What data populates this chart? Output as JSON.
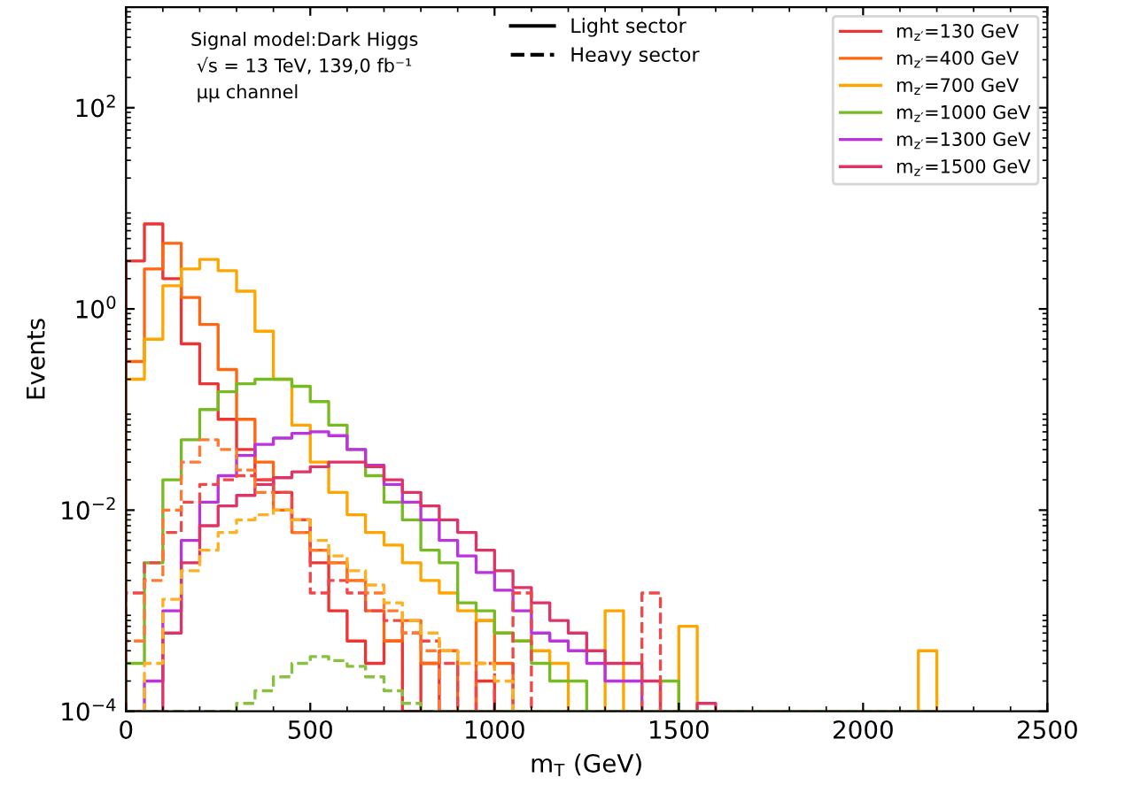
{
  "chart_data": {
    "type": "histogram",
    "xlabel": "m$_{T}$ (GeV)",
    "ylabel": "Events",
    "annotations": [
      "Signal model:Dark Higgs\n √s = 13 TeV, 139,0 fb⁻¹\n μμ channel",
      "Light sector",
      "Heavy sector"
    ],
    "bins": [
      0,
      50,
      100,
      150,
      200,
      250,
      300,
      350,
      400,
      450,
      500,
      550,
      600,
      650,
      700,
      750,
      800,
      850,
      900,
      950,
      1000,
      1050,
      1100,
      1150,
      1200,
      1250,
      1300,
      1350,
      1400,
      1450,
      1500,
      1550,
      1600,
      1650,
      1700,
      1750,
      1800,
      1850,
      1900,
      1950,
      2000,
      2050,
      2100,
      2150,
      2200
    ],
    "xlim": [
      0,
      2500
    ],
    "xticks": [
      0,
      500,
      1000,
      1500,
      2000,
      2500
    ],
    "log": "y",
    "ylim": [
      0.0001,
      1000
    ],
    "yticks": [
      {
        "value": 0.0001,
        "label": "10$^{−4}$"
      },
      {
        "value": 0.01,
        "label": "10$^{−2}$"
      },
      {
        "value": 1,
        "label": "10$^{0}$"
      },
      {
        "value": 100,
        "label": "10$^{2}$"
      }
    ],
    "legend": "top right",
    "grid": false,
    "series": [
      {
        "name": "m$_{z′}$=130 GeV",
        "color": "#ee3333",
        "line_style": "solid",
        "values": [
          3,
          7,
          2,
          0.45,
          0.18,
          0.08,
          0.04,
          0.02,
          0.015,
          0.008,
          0.003,
          0.001,
          0.0005,
          0.0003,
          0.0005,
          null,
          0.0003,
          null,
          null,
          0.0002,
          null,
          null,
          null,
          null,
          null,
          null,
          null,
          null,
          null,
          null,
          null,
          null,
          null,
          null,
          null,
          null,
          null,
          null,
          null,
          null,
          null,
          null,
          null,
          null
        ]
      },
      {
        "name": "m$_{z′}$=400 GeV",
        "color": "#ff6611",
        "line_style": "solid",
        "values": [
          0.3,
          2.5,
          4.5,
          1.3,
          0.7,
          0.25,
          0.08,
          0.03,
          0.01,
          0.006,
          0.004,
          0.003,
          0.002,
          0.001,
          0.0005,
          0.0008,
          0.0003,
          0.0004,
          null,
          0.0008,
          0.0003,
          null,
          null,
          null,
          null,
          null,
          null,
          null,
          null,
          null,
          null,
          null,
          null,
          null,
          null,
          null,
          null,
          null,
          null,
          null,
          null,
          null,
          null,
          null
        ]
      },
      {
        "name": "m$_{z′}$=700 GeV",
        "color": "#ffa500",
        "line_style": "solid",
        "values": [
          0.2,
          0.5,
          1.7,
          2.5,
          3.1,
          2.4,
          1.5,
          0.6,
          0.2,
          0.07,
          0.03,
          0.015,
          0.009,
          0.006,
          0.0045,
          0.003,
          0.002,
          0.0015,
          0.001,
          0.0008,
          0.0006,
          0.0005,
          0.0004,
          0.0003,
          null,
          null,
          0.001,
          null,
          null,
          null,
          0.0007,
          null,
          null,
          null,
          null,
          null,
          null,
          null,
          null,
          null,
          null,
          null,
          null,
          0.0004
        ]
      },
      {
        "name": "m$_{z′}$=1000 GeV",
        "color": "#77bb22",
        "line_style": "solid",
        "values": [
          0.0003,
          0.003,
          0.02,
          0.05,
          0.1,
          0.15,
          0.18,
          0.2,
          0.2,
          0.17,
          0.12,
          0.07,
          0.04,
          0.022,
          0.012,
          0.008,
          0.004,
          0.003,
          0.0012,
          0.001,
          0.0006,
          0.0005,
          0.0003,
          0.0002,
          0.0002,
          null,
          null,
          null,
          null,
          0.0002,
          null,
          null,
          null,
          null,
          null,
          null,
          null,
          null,
          null,
          null,
          null,
          null,
          null,
          null
        ]
      },
      {
        "name": "m$_{z′}$=1300 GeV",
        "color": "#bb33dd",
        "line_style": "solid",
        "values": [
          null,
          0.0002,
          0.001,
          0.005,
          0.012,
          0.022,
          0.035,
          0.045,
          0.052,
          0.058,
          0.06,
          0.055,
          0.04,
          0.028,
          0.018,
          0.012,
          0.008,
          0.005,
          0.0035,
          0.0024,
          0.0016,
          0.001,
          0.0006,
          0.0005,
          0.0004,
          0.0003,
          0.0002,
          0.0002,
          null,
          null,
          null,
          null,
          null,
          null,
          null,
          null,
          null,
          null,
          null,
          null,
          null,
          null,
          null,
          null
        ]
      },
      {
        "name": "m$_{z′}$=1500 GeV",
        "color": "#dd3366",
        "line_style": "solid",
        "values": [
          null,
          null,
          0.0006,
          0.003,
          0.007,
          0.011,
          0.014,
          0.018,
          0.021,
          0.024,
          0.027,
          0.03,
          0.03,
          0.027,
          0.02,
          0.015,
          0.011,
          0.008,
          0.006,
          0.004,
          0.0025,
          0.0017,
          0.0012,
          0.0008,
          0.0006,
          0.0004,
          0.0003,
          0.0003,
          0.0002,
          null,
          null,
          0.00012,
          null,
          null,
          null,
          null,
          null,
          null,
          null,
          null,
          null,
          null,
          null,
          null
        ]
      },
      {
        "color": "#f04848",
        "line_style": "dashed",
        "values": [
          0.0015,
          0.003,
          0.006,
          0.012,
          0.018,
          0.02,
          0.022,
          0.02,
          0.015,
          0.008,
          0.0015,
          0.002,
          0.0015,
          0.001,
          0.0008,
          0.0006,
          0.0005,
          0.0003,
          null,
          0.0003,
          null,
          0.0015,
          null,
          null,
          null,
          null,
          null,
          null,
          0.0015,
          null,
          null,
          null,
          null,
          null,
          null,
          null,
          null,
          null,
          null,
          null,
          null,
          null,
          null,
          null
        ]
      },
      {
        "color": "#ff7a30",
        "line_style": "dashed",
        "values": [
          0.0005,
          0.002,
          0.01,
          0.03,
          0.05,
          0.04,
          0.025,
          0.015,
          0.01,
          0.006,
          0.004,
          0.003,
          0.002,
          0.0015,
          0.001,
          0.0006,
          0.0004,
          null,
          null,
          null,
          null,
          null,
          null,
          null,
          null,
          null,
          null,
          null,
          null,
          null,
          null,
          null,
          null,
          null,
          null,
          null,
          null,
          null,
          null,
          null,
          null,
          null,
          null,
          null
        ]
      },
      {
        "color": "#ffb020",
        "line_style": "dashed",
        "values": [
          null,
          0.0003,
          0.0013,
          0.0025,
          0.004,
          0.006,
          0.008,
          0.009,
          0.01,
          0.008,
          0.005,
          0.0035,
          0.0025,
          0.0018,
          0.0012,
          0.0008,
          0.0006,
          0.0004,
          0.0003,
          0.0003,
          0.0002,
          null,
          null,
          null,
          null,
          null,
          null,
          null,
          null,
          null,
          null,
          null,
          null,
          null,
          null,
          null,
          null,
          null,
          null,
          null,
          null,
          null,
          null,
          null
        ]
      },
      {
        "color": "#88c040",
        "line_style": "dashed",
        "values": [
          null,
          null,
          null,
          null,
          null,
          null,
          0.00012,
          0.00016,
          0.00022,
          0.0003,
          0.00035,
          0.00032,
          0.00028,
          0.00022,
          0.00016,
          0.00012,
          null,
          null,
          null,
          null,
          null,
          null,
          null,
          null,
          null,
          null,
          null,
          null,
          null,
          null,
          null,
          null,
          null,
          null,
          null,
          null,
          null,
          null,
          null,
          null,
          null,
          null,
          null,
          null
        ]
      }
    ]
  }
}
